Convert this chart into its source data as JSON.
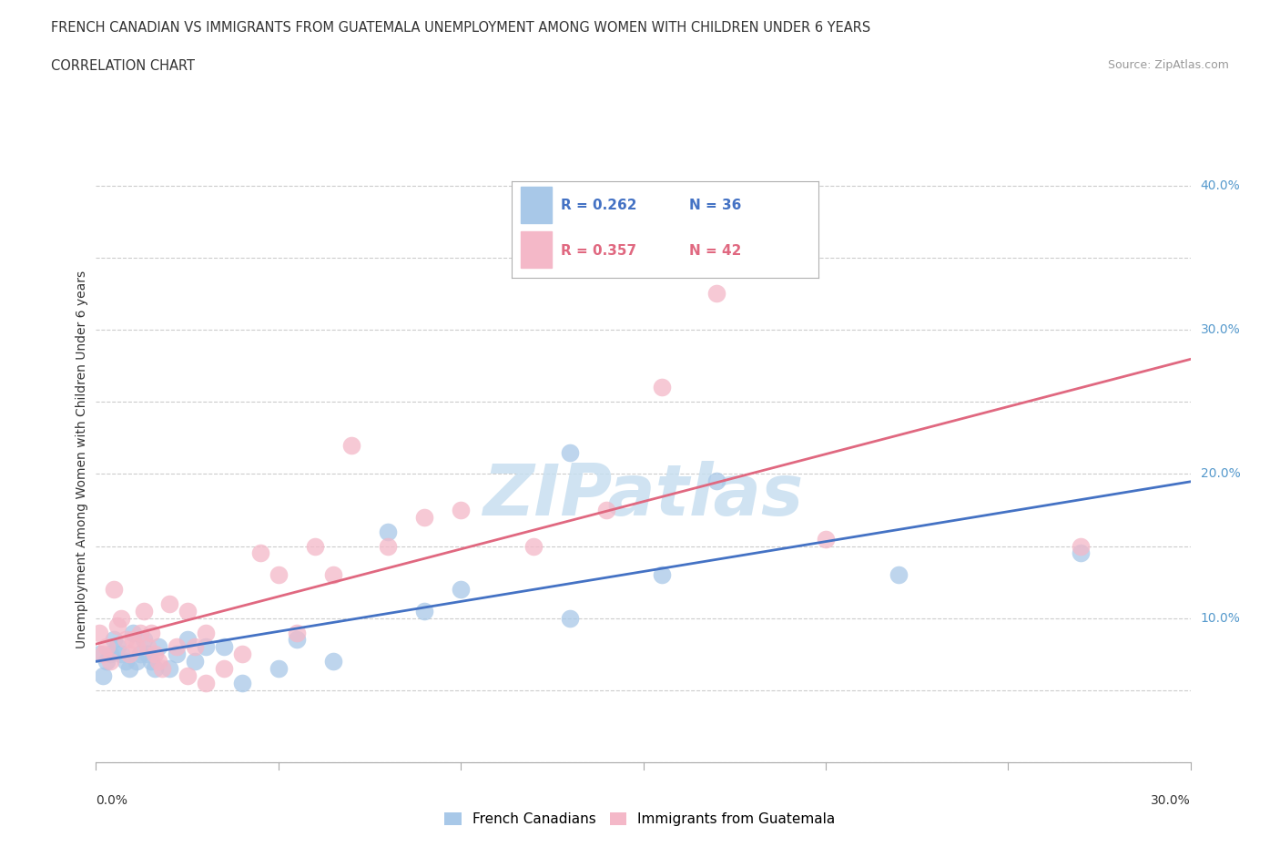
{
  "title_line1": "FRENCH CANADIAN VS IMMIGRANTS FROM GUATEMALA UNEMPLOYMENT AMONG WOMEN WITH CHILDREN UNDER 6 YEARS",
  "title_line2": "CORRELATION CHART",
  "source_text": "Source: ZipAtlas.com",
  "ylabel": "Unemployment Among Women with Children Under 6 years",
  "xmin": 0.0,
  "xmax": 0.3,
  "ymin": 0.0,
  "ymax": 0.42,
  "xticks": [
    0.0,
    0.05,
    0.1,
    0.15,
    0.2,
    0.25,
    0.3
  ],
  "yticks": [
    0.0,
    0.05,
    0.1,
    0.15,
    0.2,
    0.25,
    0.3,
    0.35,
    0.4
  ],
  "grid_color": "#cccccc",
  "background_color": "#ffffff",
  "watermark_text": "ZIPatlas",
  "watermark_color": "#c8dff0",
  "color_blue": "#a8c8e8",
  "color_pink": "#f4b8c8",
  "line_color_blue": "#4472c4",
  "line_color_pink": "#e06880",
  "legend_label1": "French Canadians",
  "legend_label2": "Immigrants from Guatemala",
  "blue_x": [
    0.001,
    0.002,
    0.003,
    0.004,
    0.005,
    0.006,
    0.007,
    0.008,
    0.009,
    0.01,
    0.011,
    0.012,
    0.013,
    0.014,
    0.015,
    0.016,
    0.017,
    0.02,
    0.022,
    0.025,
    0.027,
    0.03,
    0.035,
    0.04,
    0.05,
    0.055,
    0.065,
    0.08,
    0.09,
    0.1,
    0.13,
    0.155,
    0.17,
    0.22,
    0.27,
    0.13
  ],
  "blue_y": [
    0.075,
    0.06,
    0.07,
    0.075,
    0.085,
    0.08,
    0.075,
    0.07,
    0.065,
    0.09,
    0.07,
    0.075,
    0.085,
    0.075,
    0.07,
    0.065,
    0.08,
    0.065,
    0.075,
    0.085,
    0.07,
    0.08,
    0.08,
    0.055,
    0.065,
    0.085,
    0.07,
    0.16,
    0.105,
    0.12,
    0.215,
    0.13,
    0.195,
    0.13,
    0.145,
    0.1
  ],
  "pink_x": [
    0.001,
    0.002,
    0.003,
    0.004,
    0.005,
    0.006,
    0.007,
    0.008,
    0.009,
    0.01,
    0.011,
    0.012,
    0.013,
    0.014,
    0.015,
    0.016,
    0.017,
    0.018,
    0.02,
    0.022,
    0.025,
    0.027,
    0.03,
    0.035,
    0.04,
    0.05,
    0.055,
    0.06,
    0.065,
    0.07,
    0.08,
    0.09,
    0.1,
    0.12,
    0.14,
    0.155,
    0.17,
    0.2,
    0.27,
    0.03,
    0.025,
    0.045
  ],
  "pink_y": [
    0.09,
    0.075,
    0.08,
    0.07,
    0.12,
    0.095,
    0.1,
    0.085,
    0.075,
    0.085,
    0.08,
    0.09,
    0.105,
    0.08,
    0.09,
    0.075,
    0.07,
    0.065,
    0.11,
    0.08,
    0.105,
    0.08,
    0.09,
    0.065,
    0.075,
    0.13,
    0.09,
    0.15,
    0.13,
    0.22,
    0.15,
    0.17,
    0.175,
    0.15,
    0.175,
    0.26,
    0.325,
    0.155,
    0.15,
    0.055,
    0.06,
    0.145
  ]
}
